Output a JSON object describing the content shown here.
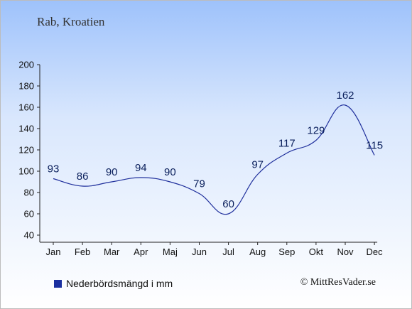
{
  "title": "Rab, Kroatien",
  "legend_label": "Nederbördsmängd i mm",
  "copyright": "© MittResVader.se",
  "colors": {
    "line": "#1f2f9c",
    "swatch": "#1a2fa0",
    "axis": "#222222"
  },
  "chart_data": {
    "type": "line",
    "title": "Rab, Kroatien",
    "categories": [
      "Jan",
      "Feb",
      "Mar",
      "Apr",
      "Maj",
      "Jun",
      "Jul",
      "Aug",
      "Sep",
      "Okt",
      "Nov",
      "Dec"
    ],
    "series": [
      {
        "name": "Nederbördsmängd i mm",
        "values": [
          93,
          86,
          90,
          94,
          90,
          79,
          60,
          97,
          117,
          129,
          162,
          115
        ]
      }
    ],
    "ylim": [
      40,
      200
    ],
    "yticks": [
      40,
      60,
      80,
      100,
      120,
      140,
      160,
      180,
      200
    ],
    "grid": false,
    "legend": "bottom-left"
  }
}
